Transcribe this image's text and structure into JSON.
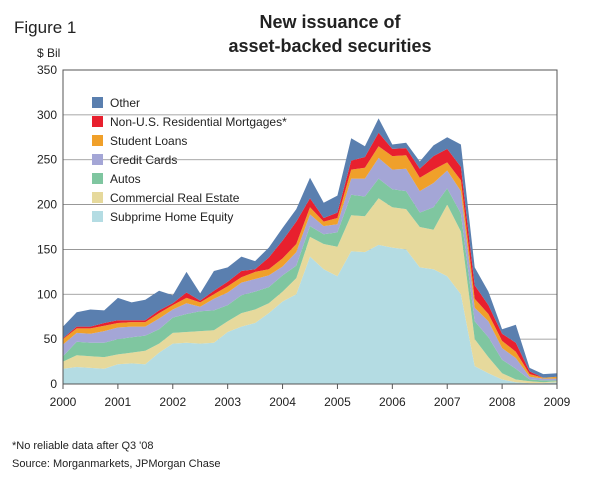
{
  "figure_label": "Figure 1",
  "chart_data": {
    "type": "area",
    "stacked": true,
    "title": "New issuance of asset-backed securities",
    "title_lines": [
      "New issuance of",
      "asset-backed securities"
    ],
    "ylabel": "$ Bil",
    "xlabel": "",
    "ylim": [
      0,
      350
    ],
    "yticks": [
      0,
      50,
      100,
      150,
      200,
      250,
      300,
      350
    ],
    "xlim": [
      2000,
      2009
    ],
    "xticks": [
      "2000",
      "2001",
      "2002",
      "2003",
      "2004",
      "2005",
      "2006",
      "2007",
      "2008",
      "2009"
    ],
    "grid": true,
    "legend_position": "top-left",
    "x": [
      2000.0,
      2000.25,
      2000.5,
      2000.75,
      2001.0,
      2001.25,
      2001.5,
      2001.75,
      2002.0,
      2002.25,
      2002.5,
      2002.75,
      2003.0,
      2003.25,
      2003.5,
      2003.75,
      2004.0,
      2004.25,
      2004.5,
      2004.75,
      2005.0,
      2005.25,
      2005.5,
      2005.75,
      2006.0,
      2006.25,
      2006.5,
      2006.75,
      2007.0,
      2007.25,
      2007.5,
      2007.75,
      2008.0,
      2008.25,
      2008.5,
      2008.75,
      2009.0
    ],
    "series": [
      {
        "name": "Subprime Home Equity",
        "color": "#b4dce3",
        "values": [
          17,
          19,
          18,
          17,
          22,
          23,
          22,
          35,
          45,
          46,
          45,
          46,
          58,
          64,
          68,
          79,
          92,
          100,
          142,
          128,
          120,
          148,
          147,
          155,
          152,
          150,
          130,
          128,
          120,
          100,
          20,
          12,
          5,
          2,
          1,
          1,
          2
        ]
      },
      {
        "name": "Commercial Real Estate",
        "color": "#e6d99c",
        "values": [
          8,
          13,
          13,
          13,
          11,
          12,
          15,
          10,
          12,
          12,
          14,
          14,
          12,
          15,
          15,
          11,
          11,
          18,
          22,
          28,
          33,
          40,
          40,
          52,
          45,
          45,
          45,
          44,
          80,
          70,
          30,
          18,
          7,
          3,
          2,
          1,
          1
        ]
      },
      {
        "name": "Autos",
        "color": "#7fc6a0",
        "values": [
          6,
          15,
          15,
          16,
          17,
          17,
          17,
          16,
          17,
          20,
          22,
          22,
          18,
          20,
          20,
          18,
          18,
          14,
          12,
          11,
          16,
          23,
          22,
          22,
          20,
          20,
          16,
          25,
          18,
          20,
          20,
          22,
          15,
          12,
          2,
          2,
          1
        ]
      },
      {
        "name": "Credit Cards",
        "color": "#a4a6d6",
        "values": [
          13,
          10,
          10,
          13,
          13,
          12,
          10,
          12,
          9,
          12,
          5,
          13,
          14,
          14,
          14,
          13,
          10,
          15,
          13,
          9,
          9,
          18,
          20,
          23,
          22,
          25,
          24,
          27,
          20,
          25,
          15,
          18,
          13,
          12,
          3,
          2,
          2
        ]
      },
      {
        "name": "Student Loans",
        "color": "#f0a02a",
        "values": [
          6,
          5,
          6,
          6,
          5,
          5,
          5,
          6,
          5,
          6,
          5,
          5,
          7,
          6,
          8,
          7,
          9,
          9,
          8,
          5,
          7,
          10,
          12,
          13,
          15,
          15,
          15,
          15,
          9,
          12,
          10,
          8,
          8,
          7,
          3,
          1,
          2
        ]
      },
      {
        "name": "Non-U.S. Residential Mortgages*",
        "color": "#e8202e",
        "values": [
          1,
          2,
          2,
          3,
          3,
          2,
          2,
          3,
          2,
          6,
          2,
          4,
          5,
          7,
          3,
          13,
          20,
          25,
          10,
          4,
          6,
          10,
          12,
          15,
          8,
          8,
          10,
          15,
          15,
          15,
          15,
          10,
          8,
          10,
          3,
          0,
          0
        ]
      },
      {
        "name": "Other",
        "color": "#5a7faf",
        "values": [
          13,
          16,
          19,
          14,
          25,
          20,
          23,
          22,
          9,
          23,
          8,
          22,
          16,
          16,
          9,
          11,
          14,
          14,
          23,
          17,
          19,
          25,
          12,
          16,
          5,
          6,
          8,
          12,
          13,
          25,
          20,
          15,
          5,
          20,
          4,
          4,
          4
        ]
      }
    ]
  },
  "footnote": "*No reliable data after Q3 '08",
  "source": "Source: Morganmarkets, JPMorgan Chase"
}
